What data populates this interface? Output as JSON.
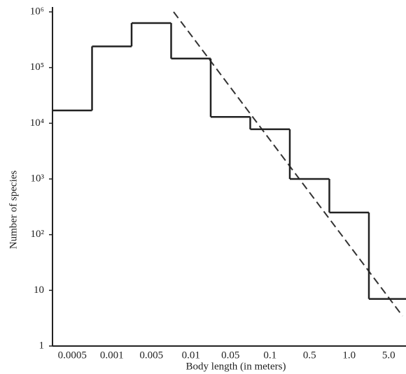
{
  "chart_data": {
    "type": "step",
    "ylabel": "Number of species",
    "xlabel": "Body length (in meters)",
    "categories": [
      "0.0005",
      "0.001",
      "0.005",
      "0.01",
      "0.05",
      "0.1",
      "0.5",
      "1.0",
      "5.0"
    ],
    "values": [
      17000,
      240000,
      630000,
      145000,
      13000,
      7800,
      1000,
      250,
      7
    ],
    "color": "#222222",
    "log_y": true,
    "ylim": [
      1,
      1000000
    ],
    "yticks": [
      1,
      10,
      {
        "value": 100,
        "label": "10²"
      },
      {
        "value": 1000,
        "label": "10³"
      },
      {
        "value": 10000,
        "label": "10⁴"
      },
      {
        "value": 100000,
        "label": "10⁵"
      },
      {
        "value": 1000000,
        "label": "10⁶"
      }
    ]
  }
}
